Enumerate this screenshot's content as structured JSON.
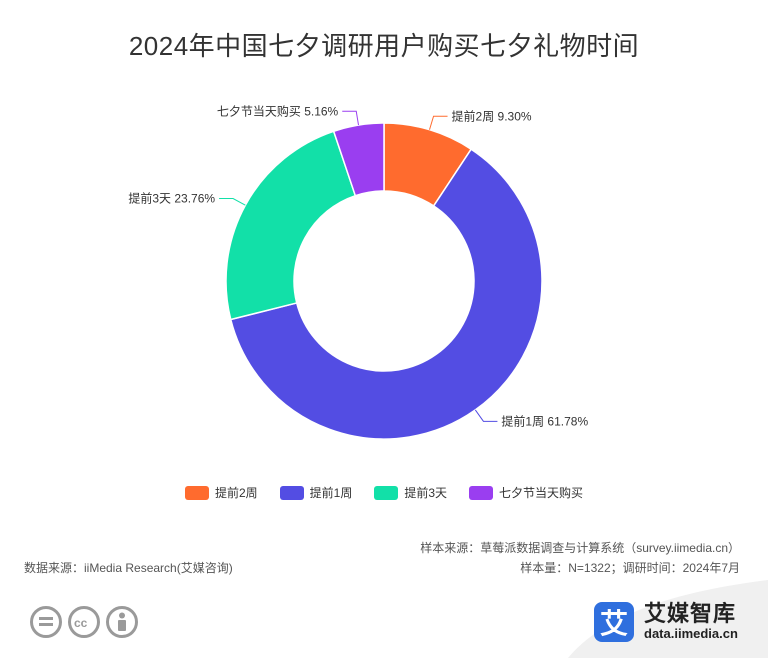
{
  "title": "2024年中国七夕调研用户购买七夕礼物时间",
  "chart_data": {
    "type": "pie",
    "donut": true,
    "title": "2024年中国七夕调研用户购买七夕礼物时间",
    "slices": [
      {
        "label": "提前2周",
        "value": 9.3,
        "display": "提前2周 9.30%",
        "color": "#ff6b2e"
      },
      {
        "label": "提前1周",
        "value": 61.78,
        "display": "提前1周 61.78%",
        "color": "#534de3"
      },
      {
        "label": "提前3天",
        "value": 23.76,
        "display": "提前3天 23.76%",
        "color": "#12e0a8"
      },
      {
        "label": "七夕节当天购买",
        "value": 5.16,
        "display": "七夕节当天购买 5.16%",
        "color": "#9a3ef0"
      }
    ],
    "legend_position": "bottom"
  },
  "sources": {
    "sample_source": "样本来源：草莓派数据调查与计算系统（survey.iimedia.cn）",
    "sample_size": "样本量：N=1322；调研时间：2024年7月",
    "data_source": "数据来源：iiMedia Research(艾媒咨询)"
  },
  "brand": {
    "logo_char": "艾",
    "name": "艾媒智库",
    "url": "data.iimedia.cn"
  },
  "license_icons": [
    "equals-icon",
    "cc-icon",
    "person-icon"
  ]
}
